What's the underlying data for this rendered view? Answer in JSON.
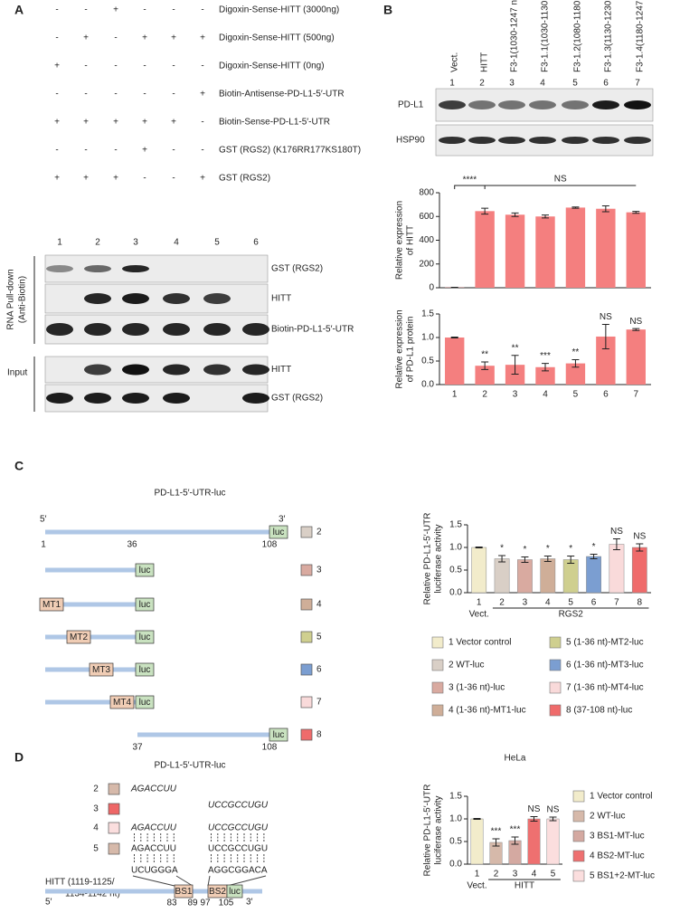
{
  "panel_a": {
    "label": "A",
    "conditions": [
      {
        "signs": [
          "-",
          "-",
          "+",
          "-",
          "-",
          "-"
        ],
        "name": "Digoxin-Sense-HITT (3000ng)"
      },
      {
        "signs": [
          "-",
          "+",
          "-",
          "+",
          "+",
          "+"
        ],
        "name": "Digoxin-Sense-HITT (500ng)"
      },
      {
        "signs": [
          "+",
          "-",
          "-",
          "-",
          "-",
          "-"
        ],
        "name": "Digoxin-Sense-HITT (0ng)"
      },
      {
        "signs": [
          "-",
          "-",
          "-",
          "-",
          "-",
          "+"
        ],
        "name": "Biotin-Antisense-PD-L1-5′-UTR"
      },
      {
        "signs": [
          "+",
          "+",
          "+",
          "+",
          "+",
          "-"
        ],
        "name": "Biotin-Sense-PD-L1-5′-UTR"
      },
      {
        "signs": [
          "-",
          "-",
          "-",
          "+",
          "-",
          "-"
        ],
        "name": "GST (RGS2) (K176RR177KS180T)"
      },
      {
        "signs": [
          "+",
          "+",
          "+",
          "-",
          "-",
          "+"
        ],
        "name": "GST (RGS2)"
      }
    ],
    "lanes": [
      "1",
      "2",
      "3",
      "4",
      "5",
      "6"
    ],
    "blots": [
      "GST (RGS2)",
      "HITT",
      "Biotin-PD-L1-5′-UTR",
      "HITT",
      "GST (RGS2)"
    ],
    "pulldown_label": "RNA Pull-down",
    "pulldown_sublabel": "(Anti-Biotin)",
    "input_label": "Input"
  },
  "panel_b": {
    "label": "B",
    "lanes": [
      "Vect.",
      "HITT",
      "F3-1(1030-1247 nt)",
      "F3-1.1(1030-1130 nt)",
      "F3-1.2(1080-1180 nt)",
      "F3-1.3(1130-1230 nt)",
      "F3-1.4(1180-1247 nt)"
    ],
    "lane_numbers": [
      "1",
      "2",
      "3",
      "4",
      "5",
      "6",
      "7"
    ],
    "blots": [
      "PD-L1",
      "HSP90"
    ]
  },
  "panel_c": {
    "label": "C",
    "title": "PD-L1-5′-UTR-luc",
    "five_prime": "5′",
    "three_prime": "3′",
    "positions": [
      "1",
      "36",
      "108",
      "37",
      "108"
    ],
    "luc": "luc",
    "mutants": [
      "MT1",
      "MT2",
      "MT3",
      "MT4"
    ],
    "rows": [
      "2",
      "3",
      "4",
      "5",
      "6",
      "7",
      "8"
    ]
  },
  "panel_d": {
    "label": "D",
    "title": "PD-L1-5′-UTR-luc",
    "rows": [
      "2",
      "3",
      "4",
      "5"
    ],
    "site1": "AGACCUU",
    "site2": "UCCGCCUGU",
    "hitt1": "UCUGGGA",
    "hitt2": "AGGCGGACA",
    "hitt_label": [
      "HITT  (1119-1125/",
      "1134-1142 nt)"
    ],
    "bs1": "BS1",
    "bs2": "BS2",
    "luc": "luc",
    "five_prime": "5′",
    "three_prime": "3′",
    "positions": [
      "83",
      "89",
      "97",
      "105"
    ]
  },
  "chart_data": [
    {
      "type": "bar",
      "y_label": [
        "Relative expression",
        "of HITT"
      ],
      "values": [
        2,
        645,
        615,
        600,
        675,
        665,
        635
      ],
      "errors": [
        2,
        25,
        15,
        12,
        5,
        25,
        8
      ],
      "color": "#f47f7f",
      "ylim": [
        0,
        800
      ],
      "yticks": [
        0,
        200,
        400,
        600,
        800
      ],
      "annotations": [
        "****",
        "NS"
      ]
    },
    {
      "type": "bar",
      "y_label": [
        "Relative expression",
        "of PD-L1  protein"
      ],
      "categories": [
        "1",
        "2",
        "3",
        "4",
        "5",
        "6",
        "7"
      ],
      "values": [
        1.0,
        0.4,
        0.42,
        0.37,
        0.45,
        1.02,
        1.17
      ],
      "errors": [
        0.01,
        0.08,
        0.2,
        0.08,
        0.08,
        0.26,
        0.02
      ],
      "bar_labels": [
        null,
        "**",
        "**",
        "***",
        "**",
        "NS",
        "NS"
      ],
      "color": "#f47f7f",
      "ylim": [
        0,
        1.5
      ],
      "yticks": [
        {
          "value": 0,
          "label": "0.0"
        },
        0.5,
        {
          "value": 1,
          "label": "1.0"
        },
        1.5
      ]
    },
    {
      "type": "bar",
      "y_label": [
        "Relative PD-L1-5′-UTR",
        "luciferase activity"
      ],
      "categories": [
        "1",
        "2",
        "3",
        "4",
        "5",
        "6",
        "7",
        "8"
      ],
      "values": [
        1.0,
        0.75,
        0.73,
        0.75,
        0.73,
        0.8,
        1.07,
        1.0
      ],
      "errors": [
        0.01,
        0.07,
        0.06,
        0.06,
        0.08,
        0.05,
        0.12,
        0.08
      ],
      "bar_labels": [
        null,
        "*",
        "*",
        "*",
        "*",
        "*",
        "NS",
        "NS"
      ],
      "groups": [
        "Vect.",
        "RGS2"
      ],
      "colors": [
        "#f2eccb",
        "#d9cfc6",
        "#d9aaa0",
        "#cfae98",
        "#cfcf8f",
        "#7b9ed1",
        "#f9dada",
        "#ef6b6b"
      ],
      "legend": [
        "1 Vector control",
        "2 WT-luc",
        "3 (1-36 nt)-luc",
        "4 (1-36 nt)-MT1-luc",
        "5 (1-36 nt)-MT2-luc",
        "6 (1-36 nt)-MT3-luc",
        "7 (1-36 nt)-MT4-luc",
        "8 (37-108 nt)-luc"
      ],
      "ylim": [
        0,
        1.5
      ],
      "yticks": [
        {
          "value": 0,
          "label": "0.0"
        },
        0.5,
        {
          "value": 1,
          "label": "1.0"
        },
        1.5
      ]
    },
    {
      "type": "bar",
      "title": "HeLa",
      "y_label": [
        "Relative PD-L1-5′-UTR",
        "luciferase activity"
      ],
      "categories": [
        "1",
        "2",
        "3",
        "4",
        "5"
      ],
      "values": [
        1.0,
        0.48,
        0.52,
        1.0,
        1.0
      ],
      "errors": [
        0.01,
        0.08,
        0.08,
        0.05,
        0.04
      ],
      "bar_labels": [
        null,
        "***",
        "***",
        "NS",
        "NS"
      ],
      "groups": [
        "Vect.",
        "HITT"
      ],
      "colors": [
        "#f2eccb",
        "#d6b9aa",
        "#d4a9a1",
        "#ee7070",
        "#fbdede"
      ],
      "legend": [
        "1 Vector control",
        "2 WT-luc",
        "3 BS1-MT-luc",
        "4 BS2-MT-luc",
        "5 BS1+2-MT-luc"
      ],
      "legend_text_colors": [
        "#222222",
        "#222222",
        "#222222",
        "#d42020",
        "#d42020"
      ],
      "ylim": [
        0,
        1.5
      ],
      "yticks": [
        {
          "value": 0,
          "label": "0.0"
        },
        0.5,
        {
          "value": 1,
          "label": "1.0"
        },
        1.5
      ]
    }
  ]
}
